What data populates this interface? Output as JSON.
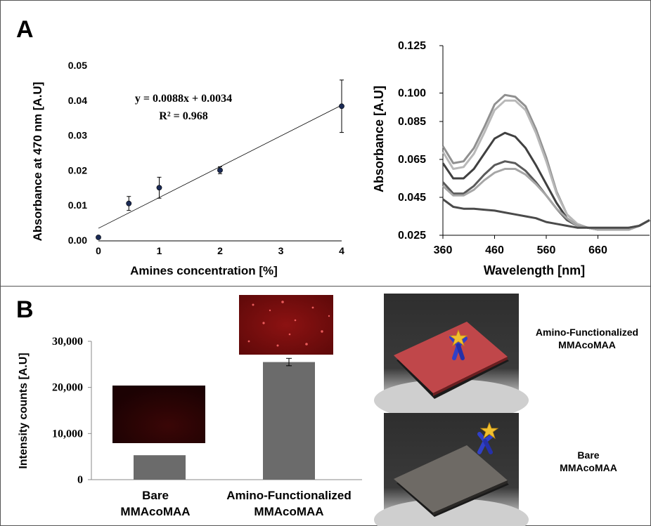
{
  "panels": {
    "a_letter": "A",
    "b_letter": "B"
  },
  "chart_data": [
    {
      "type": "scatter",
      "xlabel": "Amines concentration [%]",
      "ylabel": "Absorbance  at 470 nm [A.U]",
      "xlim": [
        0,
        4
      ],
      "ylim": [
        0,
        0.05
      ],
      "x_ticks": [
        "0",
        "1",
        "2",
        "3",
        "4"
      ],
      "y_ticks": [
        "0.00",
        "0.01",
        "0.02",
        "0.03",
        "0.04",
        "0.05"
      ],
      "points": [
        {
          "x": 0,
          "y": 0.0008,
          "err": 0.0003
        },
        {
          "x": 0.5,
          "y": 0.0105,
          "err": 0.002
        },
        {
          "x": 1,
          "y": 0.015,
          "err": 0.003
        },
        {
          "x": 2,
          "y": 0.02,
          "err": 0.001
        },
        {
          "x": 4,
          "y": 0.0383,
          "err": 0.0075
        }
      ],
      "fit": {
        "slope": 0.0088,
        "intercept": 0.0034
      },
      "equation": "y = 0.0088x + 0.0034",
      "r2": "R² = 0.968"
    },
    {
      "type": "line",
      "xlabel": "Wavelength [nm]",
      "ylabel": "Absorbance [A.U]",
      "xlim": [
        360,
        760
      ],
      "ylim": [
        0.025,
        0.125
      ],
      "x_ticks": [
        "360",
        "460",
        "560",
        "660"
      ],
      "y_ticks": [
        "0.025",
        "0.045",
        "0.065",
        "0.085",
        "0.100",
        "0.125"
      ],
      "x": [
        360,
        380,
        400,
        420,
        440,
        460,
        480,
        500,
        520,
        540,
        560,
        580,
        600,
        620,
        640,
        660,
        680,
        700,
        720,
        740,
        760
      ],
      "series": [
        {
          "color": "#909090",
          "values": [
            0.072,
            0.063,
            0.064,
            0.071,
            0.082,
            0.094,
            0.099,
            0.098,
            0.093,
            0.081,
            0.066,
            0.048,
            0.036,
            0.031,
            0.029,
            0.028,
            0.028,
            0.028,
            0.029,
            0.03,
            0.033
          ]
        },
        {
          "color": "#b8b8b8",
          "values": [
            0.069,
            0.06,
            0.061,
            0.068,
            0.079,
            0.091,
            0.096,
            0.096,
            0.091,
            0.079,
            0.064,
            0.047,
            0.036,
            0.031,
            0.029,
            0.028,
            0.028,
            0.028,
            0.029,
            0.03,
            0.033
          ]
        },
        {
          "color": "#404040",
          "values": [
            0.063,
            0.055,
            0.055,
            0.06,
            0.068,
            0.076,
            0.079,
            0.077,
            0.071,
            0.062,
            0.052,
            0.042,
            0.034,
            0.03,
            0.029,
            0.028,
            0.028,
            0.028,
            0.028,
            0.03,
            0.033
          ]
        },
        {
          "color": "#5a5a5a",
          "values": [
            0.053,
            0.047,
            0.047,
            0.051,
            0.057,
            0.062,
            0.064,
            0.063,
            0.059,
            0.053,
            0.046,
            0.039,
            0.033,
            0.03,
            0.029,
            0.028,
            0.028,
            0.028,
            0.028,
            0.03,
            0.033
          ]
        },
        {
          "color": "#a6a6a6",
          "values": [
            0.051,
            0.046,
            0.046,
            0.049,
            0.054,
            0.058,
            0.06,
            0.06,
            0.057,
            0.052,
            0.046,
            0.039,
            0.034,
            0.03,
            0.029,
            0.028,
            0.028,
            0.028,
            0.028,
            0.03,
            0.033
          ]
        },
        {
          "color": "#4a4a4a",
          "values": [
            0.044,
            0.04,
            0.039,
            0.039,
            0.0385,
            0.038,
            0.037,
            0.036,
            0.035,
            0.034,
            0.032,
            0.031,
            0.03,
            0.029,
            0.029,
            0.029,
            0.029,
            0.029,
            0.029,
            0.03,
            0.033
          ]
        }
      ]
    },
    {
      "type": "bar",
      "ylabel": "Intensity counts [A.U]",
      "ylim": [
        0,
        30000
      ],
      "y_ticks": [
        "0",
        "10,000",
        "20,000",
        "30,000"
      ],
      "categories": [
        {
          "line1": "Bare",
          "line2": "MMAcoMAA"
        },
        {
          "line1": "Amino-Functionalized",
          "line2": "MMAcoMAA"
        }
      ],
      "values": [
        5300,
        25500
      ],
      "errors": [
        0,
        800
      ],
      "bar_color": "#6b6b6b"
    }
  ],
  "scenes": {
    "top_label_1": "Amino-Functionalized",
    "top_label_2": "MMAcoMAA",
    "bottom_label_1": "Bare",
    "bottom_label_2": "MMAcoMAA"
  }
}
